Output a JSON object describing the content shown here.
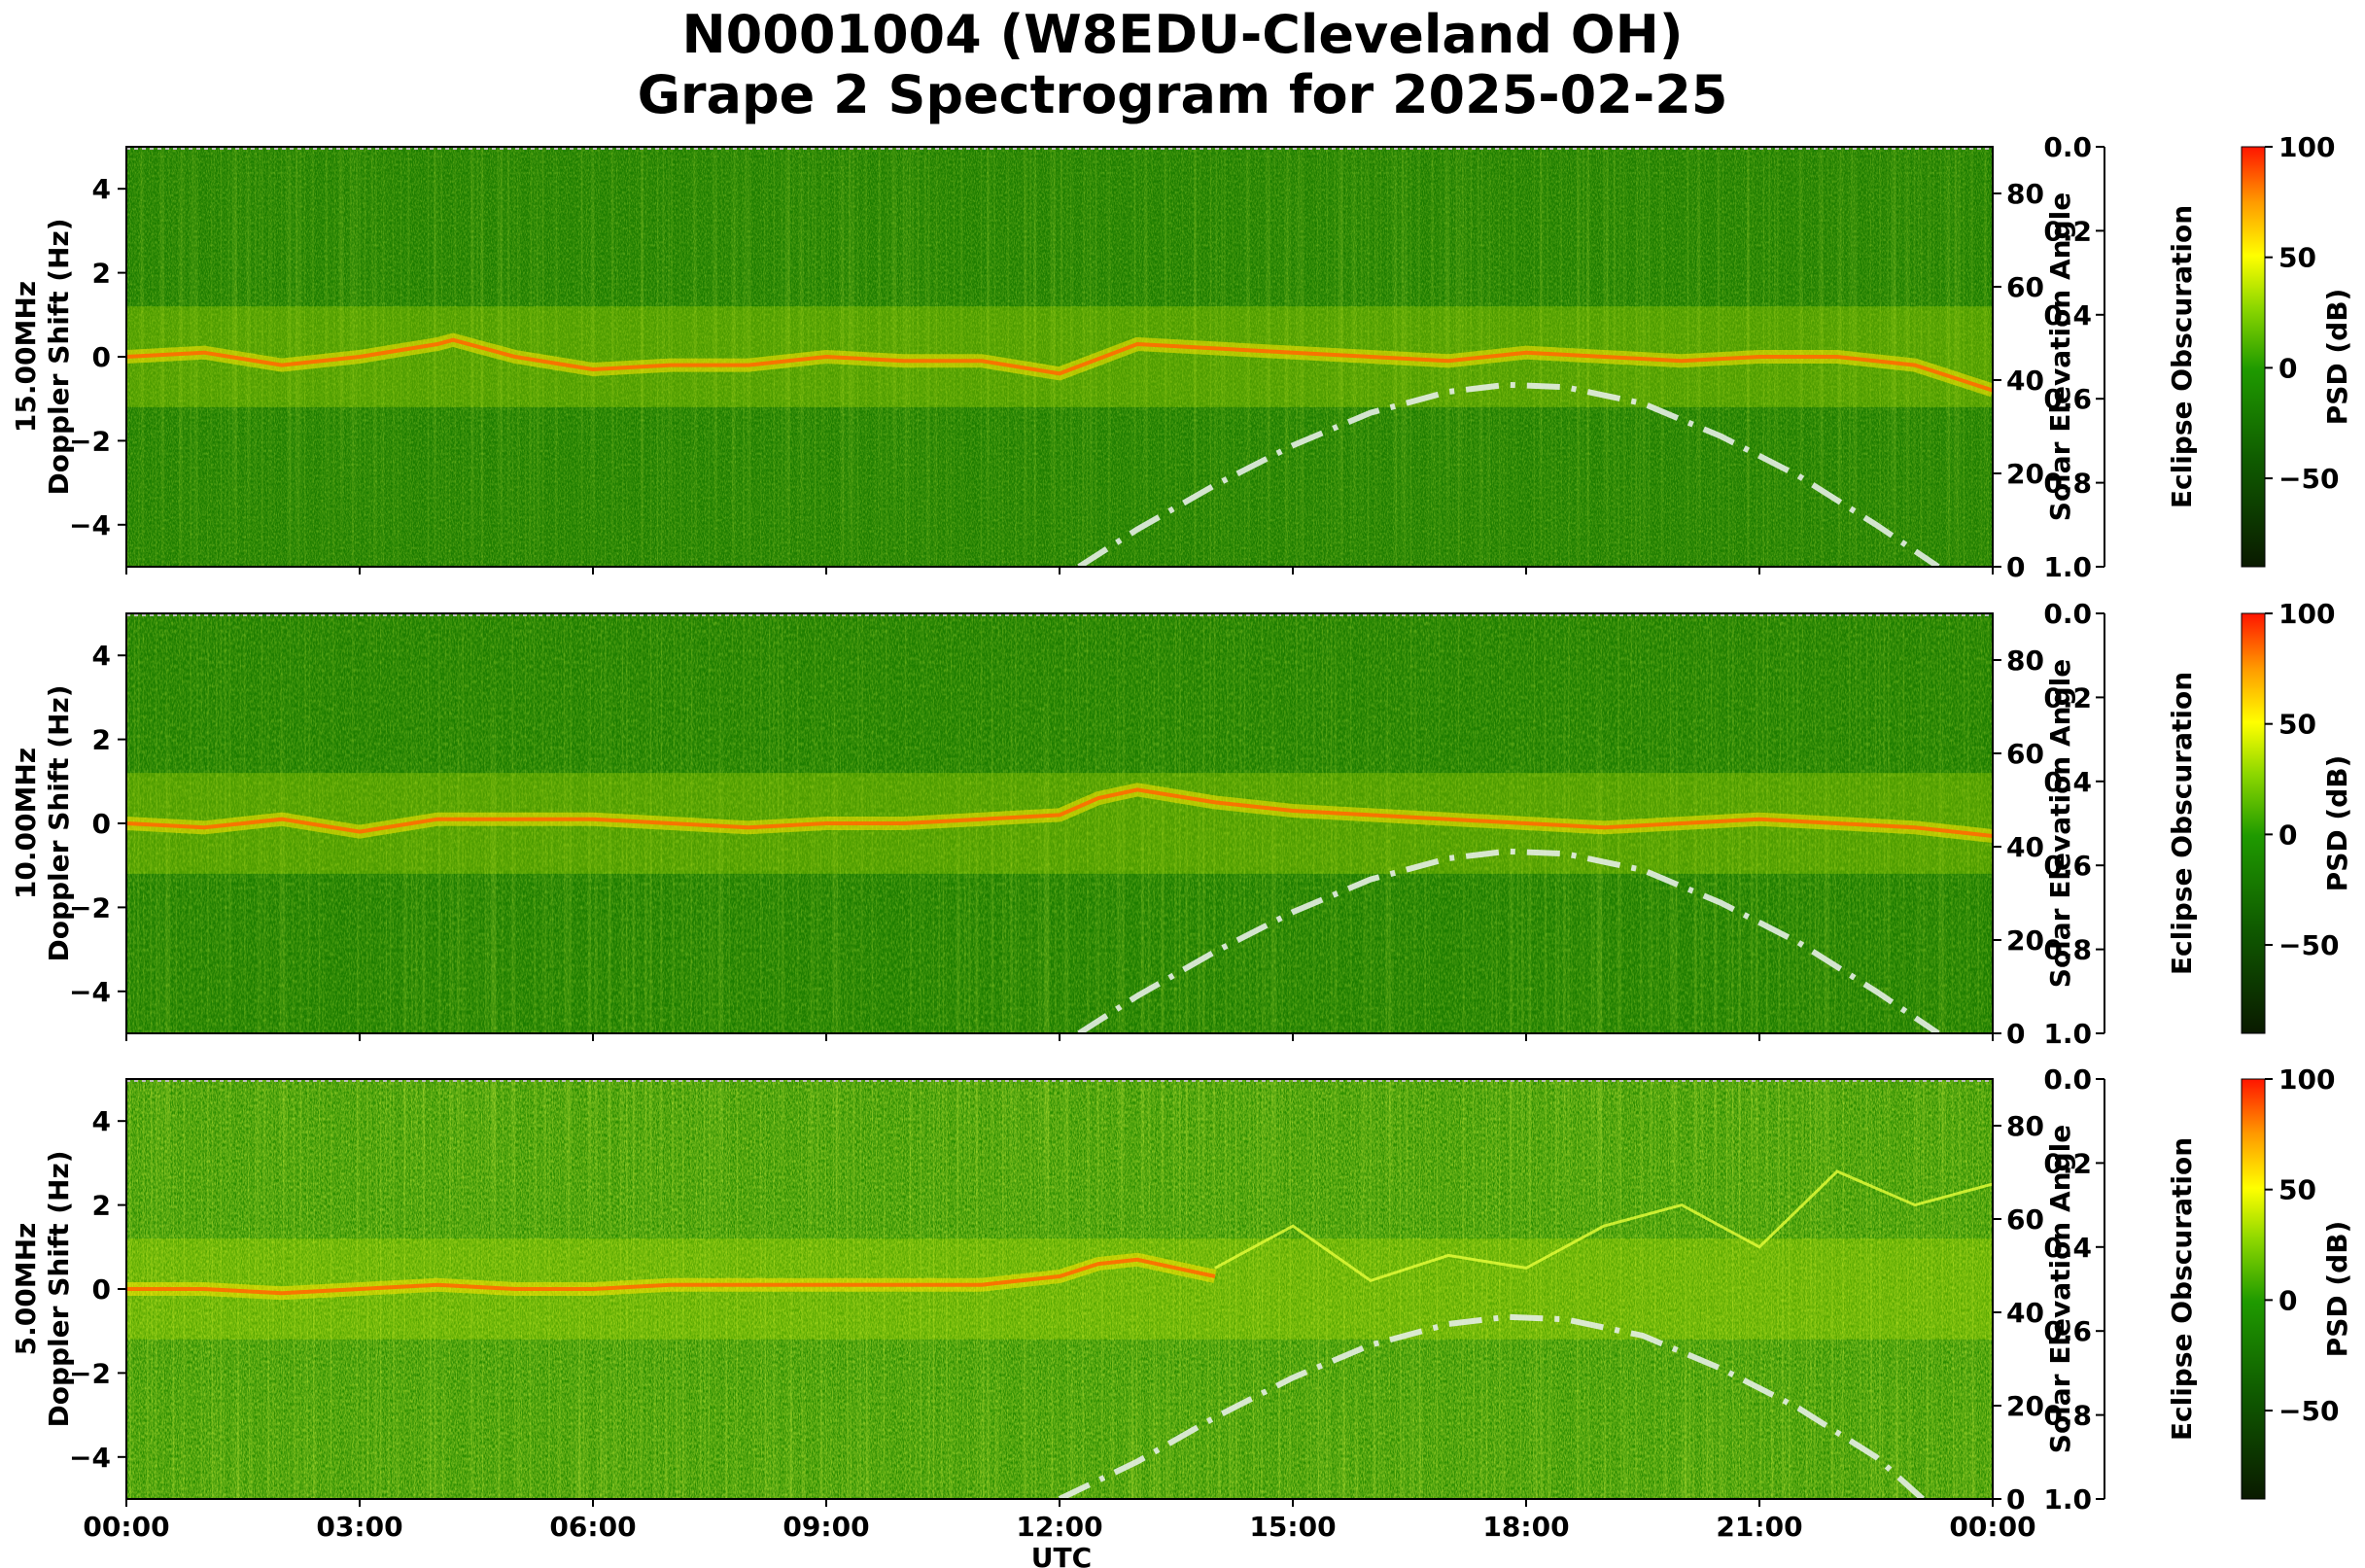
{
  "figure": {
    "title_line1": "N0001004 (W8EDU-Cleveland OH)",
    "title_line2": "Grape 2 Spectrogram for 2025-02-25"
  },
  "colors": {
    "background": "#ffffff",
    "spectrogram_low": "#0d3d00",
    "spectrogram_mid": "#1e8a00",
    "spectrogram_high": "#e6ff00",
    "spectrogram_peak": "#ff1a00",
    "solar_curve": "#e6eee6"
  },
  "chart_data": [
    {
      "type": "heatmap",
      "panel": "15 MHz",
      "ylabel": "15.00MHz\nDoppler Shift (Hz)",
      "ylim": [
        -5,
        5
      ],
      "yticks": [
        "4",
        "2",
        "0",
        "−2",
        "−4"
      ],
      "xlim": [
        "00:00",
        "24:00"
      ],
      "right_axis": {
        "label": "Solar Elevation Angle",
        "ylim": [
          0,
          90
        ],
        "ticks": [
          "80",
          "60",
          "40",
          "20",
          "0"
        ]
      },
      "eclipse_axis": {
        "label": "Eclipse Obscuration",
        "ylim": [
          1.0,
          0.0
        ],
        "ticks": [
          "0.0",
          "0.2",
          "0.4",
          "0.6",
          "0.8",
          "1.0"
        ]
      },
      "colorbar": {
        "label": "PSD (dB)",
        "ticks": [
          "100",
          "50",
          "0",
          "−50"
        ],
        "range": [
          -90,
          100
        ]
      },
      "solar_elevation": {
        "hours": [
          12.25,
          13,
          14,
          15,
          16,
          17,
          17.75,
          18.5,
          19.5,
          20.5,
          21.5,
          22.5,
          23.3
        ],
        "degrees": [
          0,
          8,
          17.5,
          26,
          33,
          37.5,
          39,
          38.5,
          35,
          28,
          19.5,
          9,
          0
        ]
      },
      "main_trace": {
        "hours": [
          0,
          1,
          2,
          3,
          4,
          4.2,
          5,
          6,
          7,
          8,
          9,
          10,
          11,
          12,
          13,
          14,
          15,
          16,
          17,
          18,
          19,
          20,
          21,
          22,
          23,
          24
        ],
        "doppler": [
          0,
          0.1,
          -0.2,
          0,
          0.3,
          0.4,
          0,
          -0.3,
          -0.2,
          -0.2,
          0,
          -0.1,
          -0.1,
          -0.4,
          0.3,
          0.2,
          0.1,
          0,
          -0.1,
          0.1,
          0,
          -0.1,
          0,
          0,
          -0.2,
          -0.8
        ]
      }
    },
    {
      "type": "heatmap",
      "panel": "10 MHz",
      "ylabel": "10.00MHz\nDoppler Shift (Hz)",
      "ylim": [
        -5,
        5
      ],
      "yticks": [
        "4",
        "2",
        "0",
        "−2",
        "−4"
      ],
      "xlim": [
        "00:00",
        "24:00"
      ],
      "right_axis": {
        "label": "Solar Elevation Angle",
        "ylim": [
          0,
          90
        ],
        "ticks": [
          "80",
          "60",
          "40",
          "20",
          "0"
        ]
      },
      "eclipse_axis": {
        "label": "Eclipse Obscuration",
        "ylim": [
          1.0,
          0.0
        ],
        "ticks": [
          "0.0",
          "0.2",
          "0.4",
          "0.6",
          "0.8",
          "1.0"
        ]
      },
      "colorbar": {
        "label": "PSD (dB)",
        "ticks": [
          "100",
          "50",
          "0",
          "−50"
        ],
        "range": [
          -90,
          100
        ]
      },
      "solar_elevation": {
        "hours": [
          12.25,
          13,
          14,
          15,
          16,
          17,
          17.75,
          18.5,
          19.5,
          20.5,
          21.5,
          22.5,
          23.3
        ],
        "degrees": [
          0,
          8,
          17.5,
          26,
          33,
          37.5,
          39,
          38.5,
          35,
          28,
          19.5,
          9,
          0
        ]
      },
      "main_trace": {
        "hours": [
          0,
          1,
          2,
          3,
          4,
          5,
          6,
          7,
          8,
          9,
          10,
          11,
          12,
          12.5,
          13,
          14,
          15,
          16,
          17,
          18,
          19,
          20,
          21,
          22,
          23,
          24
        ],
        "doppler": [
          0,
          -0.1,
          0.1,
          -0.2,
          0.1,
          0.1,
          0.1,
          0,
          -0.1,
          0,
          0,
          0.1,
          0.2,
          0.6,
          0.8,
          0.5,
          0.3,
          0.2,
          0.1,
          0,
          -0.1,
          0,
          0.1,
          0,
          -0.1,
          -0.3
        ]
      }
    },
    {
      "type": "heatmap",
      "panel": "5 MHz",
      "ylabel": "5.00MHz\nDoppler Shift (Hz)",
      "ylim": [
        -5,
        5
      ],
      "yticks": [
        "4",
        "2",
        "0",
        "−2",
        "−4"
      ],
      "xlabel": "UTC",
      "xticks": [
        "00:00",
        "03:00",
        "06:00",
        "09:00",
        "12:00",
        "15:00",
        "18:00",
        "21:00",
        "00:00"
      ],
      "xlim": [
        "00:00",
        "24:00"
      ],
      "right_axis": {
        "label": "Solar Elevation Angle",
        "ylim": [
          0,
          90
        ],
        "ticks": [
          "80",
          "60",
          "40",
          "20",
          "0"
        ]
      },
      "eclipse_axis": {
        "label": "Eclipse Obscuration",
        "ylim": [
          1.0,
          0.0
        ],
        "ticks": [
          "0.0",
          "0.2",
          "0.4",
          "0.6",
          "0.8",
          "1.0"
        ]
      },
      "colorbar": {
        "label": "PSD (dB)",
        "ticks": [
          "100",
          "50",
          "0",
          "−50"
        ],
        "range": [
          -90,
          100
        ]
      },
      "solar_elevation": {
        "hours": [
          12.0,
          13,
          14,
          15,
          16,
          17,
          17.75,
          18.5,
          19.5,
          20.5,
          21.5,
          22.5,
          23.1
        ],
        "degrees": [
          0,
          8,
          17.5,
          26,
          33,
          37.5,
          39,
          38.5,
          35,
          28,
          19.5,
          9,
          0
        ]
      },
      "main_trace": {
        "hours": [
          0,
          1,
          2,
          3,
          4,
          5,
          6,
          7,
          8,
          9,
          10,
          11,
          12,
          12.5,
          13,
          13.5,
          14
        ],
        "doppler": [
          0,
          0,
          -0.1,
          0,
          0.1,
          0,
          0,
          0.1,
          0.1,
          0.1,
          0.1,
          0.1,
          0.3,
          0.6,
          0.7,
          0.5,
          0.3
        ]
      },
      "side_traces": [
        {
          "hours": [
            14,
            15,
            16,
            17,
            18,
            19,
            20,
            21,
            22,
            23,
            24
          ],
          "doppler": [
            0.5,
            1.5,
            0.2,
            0.8,
            0.5,
            1.5,
            2.0,
            1.0,
            2.8,
            2.0,
            2.5
          ]
        }
      ]
    }
  ]
}
